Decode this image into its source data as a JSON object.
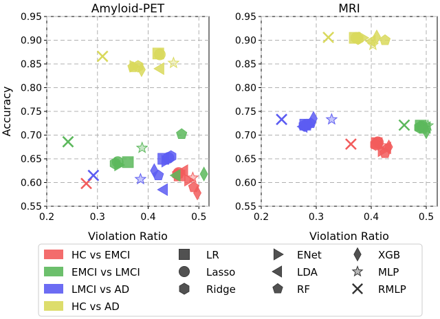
{
  "chart_data": {
    "type": "scatter",
    "ylabel": "Accuracy",
    "xlabel": "Violation Ratio",
    "xlim": [
      0.2,
      0.52
    ],
    "ylim": [
      0.55,
      0.95
    ],
    "xticks": [
      "0.2",
      "0.3",
      "0.4",
      "0.5"
    ],
    "yticks": [
      "0.55",
      "0.60",
      "0.65",
      "0.70",
      "0.75",
      "0.80",
      "0.85",
      "0.90",
      "0.95"
    ],
    "grid": true,
    "groups": [
      {
        "name": "HC vs EMCI",
        "color": "#f25c5c"
      },
      {
        "name": "EMCI vs LMCI",
        "color": "#5cb85c"
      },
      {
        "name": "LMCI vs AD",
        "color": "#5c5cf2"
      },
      {
        "name": "HC vs AD",
        "color": "#d9d95c"
      }
    ],
    "models": [
      "LR",
      "Lasso",
      "Ridge",
      "ENet",
      "LDA",
      "RF",
      "XGB",
      "MLP",
      "RMLP"
    ],
    "legend_position": "bottom",
    "panels": [
      {
        "title": "Amyloid-PET",
        "xlabel": "Violation Ratio",
        "points": [
          {
            "group": "HC vs EMCI",
            "model": "LR",
            "x": 0.462,
            "y": 0.615
          },
          {
            "group": "HC vs EMCI",
            "model": "Lasso",
            "x": 0.46,
            "y": 0.62
          },
          {
            "group": "HC vs EMCI",
            "model": "Ridge",
            "x": 0.458,
            "y": 0.617
          },
          {
            "group": "HC vs EMCI",
            "model": "ENet",
            "x": 0.48,
            "y": 0.605
          },
          {
            "group": "HC vs EMCI",
            "model": "LDA",
            "x": 0.47,
            "y": 0.625
          },
          {
            "group": "HC vs EMCI",
            "model": "RF",
            "x": 0.49,
            "y": 0.59
          },
          {
            "group": "HC vs EMCI",
            "model": "XGB",
            "x": 0.497,
            "y": 0.578
          },
          {
            "group": "HC vs EMCI",
            "model": "MLP",
            "x": 0.488,
            "y": 0.61
          },
          {
            "group": "HC vs EMCI",
            "model": "RMLP",
            "x": 0.278,
            "y": 0.598
          },
          {
            "group": "EMCI vs LMCI",
            "model": "LR",
            "x": 0.36,
            "y": 0.643
          },
          {
            "group": "EMCI vs LMCI",
            "model": "Lasso",
            "x": 0.34,
            "y": 0.643
          },
          {
            "group": "EMCI vs LMCI",
            "model": "Ridge",
            "x": 0.335,
            "y": 0.64
          },
          {
            "group": "EMCI vs LMCI",
            "model": "ENet",
            "x": 0.342,
            "y": 0.637
          },
          {
            "group": "EMCI vs LMCI",
            "model": "LDA",
            "x": 0.455,
            "y": 0.615
          },
          {
            "group": "EMCI vs LMCI",
            "model": "RF",
            "x": 0.466,
            "y": 0.702
          },
          {
            "group": "EMCI vs LMCI",
            "model": "XGB",
            "x": 0.51,
            "y": 0.618
          },
          {
            "group": "EMCI vs LMCI",
            "model": "MLP",
            "x": 0.388,
            "y": 0.673
          },
          {
            "group": "EMCI vs LMCI",
            "model": "RMLP",
            "x": 0.242,
            "y": 0.686
          },
          {
            "group": "LMCI vs AD",
            "model": "LR",
            "x": 0.43,
            "y": 0.65
          },
          {
            "group": "LMCI vs AD",
            "model": "Lasso",
            "x": 0.44,
            "y": 0.652
          },
          {
            "group": "LMCI vs AD",
            "model": "Ridge",
            "x": 0.445,
            "y": 0.655
          },
          {
            "group": "LMCI vs AD",
            "model": "ENet",
            "x": 0.435,
            "y": 0.645
          },
          {
            "group": "LMCI vs AD",
            "model": "LDA",
            "x": 0.43,
            "y": 0.585
          },
          {
            "group": "LMCI vs AD",
            "model": "RF",
            "x": 0.42,
            "y": 0.615
          },
          {
            "group": "LMCI vs AD",
            "model": "XGB",
            "x": 0.412,
            "y": 0.625
          },
          {
            "group": "LMCI vs AD",
            "model": "MLP",
            "x": 0.385,
            "y": 0.607
          },
          {
            "group": "LMCI vs AD",
            "model": "RMLP",
            "x": 0.292,
            "y": 0.615
          },
          {
            "group": "HC vs AD",
            "model": "LR",
            "x": 0.42,
            "y": 0.872
          },
          {
            "group": "HC vs AD",
            "model": "Lasso",
            "x": 0.423,
            "y": 0.87
          },
          {
            "group": "HC vs AD",
            "model": "Ridge",
            "x": 0.38,
            "y": 0.845
          },
          {
            "group": "HC vs AD",
            "model": "ENet",
            "x": 0.372,
            "y": 0.845
          },
          {
            "group": "HC vs AD",
            "model": "LDA",
            "x": 0.423,
            "y": 0.84
          },
          {
            "group": "HC vs AD",
            "model": "RF",
            "x": 0.37,
            "y": 0.843
          },
          {
            "group": "HC vs AD",
            "model": "XGB",
            "x": 0.387,
            "y": 0.838
          },
          {
            "group": "HC vs AD",
            "model": "MLP",
            "x": 0.45,
            "y": 0.852
          },
          {
            "group": "HC vs AD",
            "model": "RMLP",
            "x": 0.31,
            "y": 0.866
          }
        ]
      },
      {
        "title": "MRI",
        "xlabel": "Violation Ratio",
        "points": [
          {
            "group": "HC vs EMCI",
            "model": "LR",
            "x": 0.41,
            "y": 0.683
          },
          {
            "group": "HC vs EMCI",
            "model": "Lasso",
            "x": 0.412,
            "y": 0.685
          },
          {
            "group": "HC vs EMCI",
            "model": "Ridge",
            "x": 0.408,
            "y": 0.68
          },
          {
            "group": "HC vs EMCI",
            "model": "ENet",
            "x": 0.42,
            "y": 0.667
          },
          {
            "group": "HC vs EMCI",
            "model": "LDA",
            "x": 0.428,
            "y": 0.673
          },
          {
            "group": "HC vs EMCI",
            "model": "RF",
            "x": 0.425,
            "y": 0.662
          },
          {
            "group": "HC vs EMCI",
            "model": "XGB",
            "x": 0.432,
            "y": 0.675
          },
          {
            "group": "HC vs EMCI",
            "model": "MLP",
            "x": 0.418,
            "y": 0.678
          },
          {
            "group": "HC vs EMCI",
            "model": "RMLP",
            "x": 0.363,
            "y": 0.681
          },
          {
            "group": "EMCI vs LMCI",
            "model": "LR",
            "x": 0.49,
            "y": 0.72
          },
          {
            "group": "EMCI vs LMCI",
            "model": "Lasso",
            "x": 0.492,
            "y": 0.718
          },
          {
            "group": "EMCI vs LMCI",
            "model": "Ridge",
            "x": 0.488,
            "y": 0.716
          },
          {
            "group": "EMCI vs LMCI",
            "model": "ENet",
            "x": 0.495,
            "y": 0.718
          },
          {
            "group": "EMCI vs LMCI",
            "model": "LDA",
            "x": 0.5,
            "y": 0.716
          },
          {
            "group": "EMCI vs LMCI",
            "model": "RF",
            "x": 0.494,
            "y": 0.713
          },
          {
            "group": "EMCI vs LMCI",
            "model": "XGB",
            "x": 0.5,
            "y": 0.707
          },
          {
            "group": "EMCI vs LMCI",
            "model": "MLP",
            "x": 0.503,
            "y": 0.72
          },
          {
            "group": "EMCI vs LMCI",
            "model": "RMLP",
            "x": 0.46,
            "y": 0.721
          },
          {
            "group": "LMCI vs AD",
            "model": "LR",
            "x": 0.28,
            "y": 0.722
          },
          {
            "group": "LMCI vs AD",
            "model": "Lasso",
            "x": 0.283,
            "y": 0.722
          },
          {
            "group": "LMCI vs AD",
            "model": "Ridge",
            "x": 0.278,
            "y": 0.72
          },
          {
            "group": "LMCI vs AD",
            "model": "ENet",
            "x": 0.286,
            "y": 0.72
          },
          {
            "group": "LMCI vs AD",
            "model": "LDA",
            "x": 0.276,
            "y": 0.718
          },
          {
            "group": "LMCI vs AD",
            "model": "RF",
            "x": 0.29,
            "y": 0.725
          },
          {
            "group": "LMCI vs AD",
            "model": "XGB",
            "x": 0.295,
            "y": 0.735
          },
          {
            "group": "LMCI vs AD",
            "model": "MLP",
            "x": 0.328,
            "y": 0.733
          },
          {
            "group": "LMCI vs AD",
            "model": "RMLP",
            "x": 0.237,
            "y": 0.733
          },
          {
            "group": "HC vs AD",
            "model": "LR",
            "x": 0.37,
            "y": 0.905
          },
          {
            "group": "HC vs AD",
            "model": "Lasso",
            "x": 0.373,
            "y": 0.905
          },
          {
            "group": "HC vs AD",
            "model": "Ridge",
            "x": 0.376,
            "y": 0.903
          },
          {
            "group": "HC vs AD",
            "model": "ENet",
            "x": 0.385,
            "y": 0.905
          },
          {
            "group": "HC vs AD",
            "model": "LDA",
            "x": 0.4,
            "y": 0.898
          },
          {
            "group": "HC vs AD",
            "model": "RF",
            "x": 0.425,
            "y": 0.9
          },
          {
            "group": "HC vs AD",
            "model": "XGB",
            "x": 0.41,
            "y": 0.907
          },
          {
            "group": "HC vs AD",
            "model": "MLP",
            "x": 0.403,
            "y": 0.89
          },
          {
            "group": "HC vs AD",
            "model": "RMLP",
            "x": 0.322,
            "y": 0.906
          }
        ]
      }
    ]
  }
}
